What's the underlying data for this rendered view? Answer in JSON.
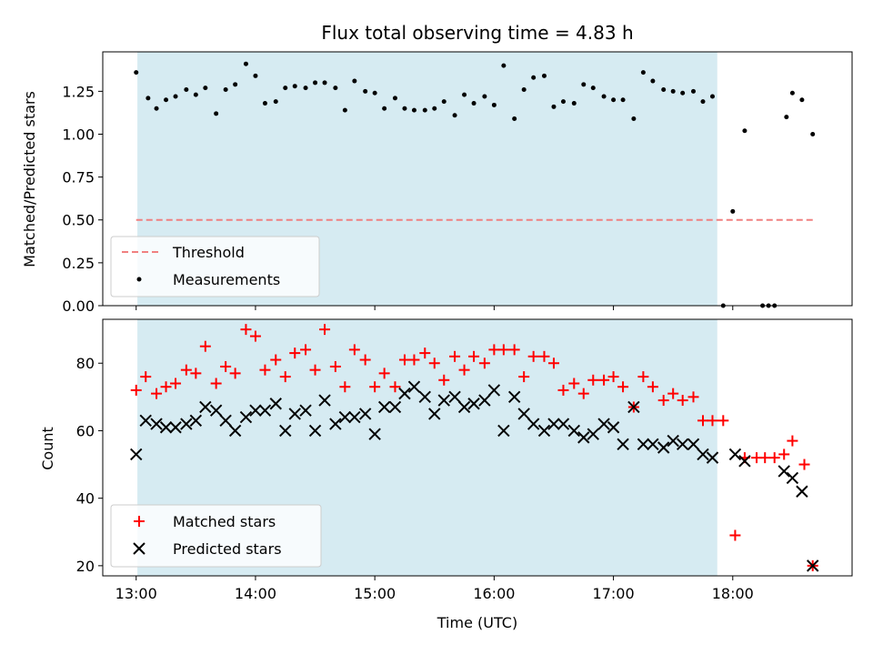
{
  "title": "Flux total observing time = 4.83 h",
  "colors": {
    "shade": "#add8e6",
    "threshold": "#f08080",
    "matched": "#ff0000",
    "predicted": "#000000",
    "measurement": "#000000"
  },
  "chart_data": [
    {
      "type": "scatter",
      "panel": "top",
      "ylabel": "Matched/Predicted stars",
      "ylim": [
        0,
        1.48
      ],
      "yticks": [
        0.0,
        0.25,
        0.5,
        0.75,
        1.0,
        1.25
      ],
      "ytick_labels": [
        "0.00",
        "0.25",
        "0.50",
        "0.75",
        "1.00",
        "1.25"
      ],
      "shaded_x": [
        13.01,
        17.87
      ],
      "threshold": {
        "name": "Threshold",
        "x": [
          13.0,
          18.7
        ],
        "y": 0.5,
        "style": "dashed"
      },
      "series": [
        {
          "name": "Measurements",
          "x": [
            13.0,
            13.1,
            13.17,
            13.25,
            13.33,
            13.42,
            13.5,
            13.58,
            13.67,
            13.75,
            13.83,
            13.92,
            14.0,
            14.08,
            14.17,
            14.25,
            14.33,
            14.42,
            14.5,
            14.58,
            14.67,
            14.75,
            14.83,
            14.92,
            15.0,
            15.08,
            15.17,
            15.25,
            15.33,
            15.42,
            15.5,
            15.58,
            15.67,
            15.75,
            15.83,
            15.92,
            16.0,
            16.08,
            16.17,
            16.25,
            16.33,
            16.42,
            16.5,
            16.58,
            16.67,
            16.75,
            16.83,
            16.92,
            17.0,
            17.08,
            17.17,
            17.25,
            17.33,
            17.42,
            17.5,
            17.58,
            17.67,
            17.75,
            17.83,
            17.92,
            18.0,
            18.1,
            18.25,
            18.3,
            18.35,
            18.45,
            18.5,
            18.58,
            18.67
          ],
          "y": [
            1.36,
            1.21,
            1.15,
            1.2,
            1.22,
            1.26,
            1.23,
            1.27,
            1.12,
            1.26,
            1.29,
            1.41,
            1.34,
            1.18,
            1.19,
            1.27,
            1.28,
            1.27,
            1.3,
            1.3,
            1.27,
            1.14,
            1.31,
            1.25,
            1.24,
            1.15,
            1.21,
            1.15,
            1.14,
            1.14,
            1.15,
            1.19,
            1.11,
            1.23,
            1.18,
            1.22,
            1.17,
            1.4,
            1.09,
            1.26,
            1.33,
            1.34,
            1.16,
            1.19,
            1.18,
            1.29,
            1.27,
            1.22,
            1.2,
            1.2,
            1.09,
            1.36,
            1.31,
            1.26,
            1.25,
            1.24,
            1.25,
            1.19,
            1.22,
            0.0,
            0.55,
            1.02,
            0.0,
            0.0,
            0.0,
            1.1,
            1.24,
            1.2,
            1.0
          ]
        }
      ]
    },
    {
      "type": "scatter",
      "panel": "bottom",
      "xlabel": "Time (UTC)",
      "ylabel": "Count",
      "ylim": [
        17,
        93
      ],
      "yticks": [
        20,
        40,
        60,
        80
      ],
      "ytick_labels": [
        "20",
        "40",
        "60",
        "80"
      ],
      "xlim": [
        12.72,
        19.0
      ],
      "xticks": [
        13,
        14,
        15,
        16,
        17,
        18
      ],
      "xtick_labels": [
        "13:00",
        "14:00",
        "15:00",
        "16:00",
        "17:00",
        "18:00"
      ],
      "shaded_x": [
        13.01,
        17.87
      ],
      "series": [
        {
          "name": "Matched stars",
          "marker": "+",
          "x": [
            13.0,
            13.08,
            13.17,
            13.25,
            13.33,
            13.42,
            13.5,
            13.58,
            13.67,
            13.75,
            13.83,
            13.92,
            14.0,
            14.08,
            14.17,
            14.25,
            14.33,
            14.42,
            14.5,
            14.58,
            14.67,
            14.75,
            14.83,
            14.92,
            15.0,
            15.08,
            15.17,
            15.25,
            15.33,
            15.42,
            15.5,
            15.58,
            15.67,
            15.75,
            15.83,
            15.92,
            16.0,
            16.08,
            16.17,
            16.25,
            16.33,
            16.42,
            16.5,
            16.58,
            16.67,
            16.75,
            16.83,
            16.92,
            17.0,
            17.08,
            17.17,
            17.25,
            17.33,
            17.42,
            17.5,
            17.58,
            17.67,
            17.75,
            17.83,
            17.92,
            18.02,
            18.1,
            18.2,
            18.27,
            18.35,
            18.43,
            18.5,
            18.6,
            18.67
          ],
          "y": [
            72,
            76,
            71,
            73,
            74,
            78,
            77,
            85,
            74,
            79,
            77,
            90,
            88,
            78,
            81,
            76,
            83,
            84,
            78,
            90,
            79,
            73,
            84,
            81,
            73,
            77,
            73,
            81,
            81,
            83,
            80,
            75,
            82,
            78,
            82,
            80,
            84,
            84,
            84,
            76,
            82,
            82,
            80,
            72,
            74,
            71,
            75,
            75,
            76,
            73,
            67,
            76,
            73,
            69,
            71,
            69,
            70,
            63,
            63,
            63,
            29,
            52,
            52,
            52,
            52,
            53,
            57,
            50,
            20
          ]
        },
        {
          "name": "Predicted stars",
          "marker": "x",
          "x": [
            13.0,
            13.08,
            13.17,
            13.25,
            13.33,
            13.42,
            13.5,
            13.58,
            13.67,
            13.75,
            13.83,
            13.92,
            14.0,
            14.08,
            14.17,
            14.25,
            14.33,
            14.42,
            14.5,
            14.58,
            14.67,
            14.75,
            14.83,
            14.92,
            15.0,
            15.08,
            15.17,
            15.25,
            15.33,
            15.42,
            15.5,
            15.58,
            15.67,
            15.75,
            15.83,
            15.92,
            16.0,
            16.08,
            16.17,
            16.25,
            16.33,
            16.42,
            16.5,
            16.58,
            16.67,
            16.75,
            16.83,
            16.92,
            17.0,
            17.08,
            17.17,
            17.25,
            17.33,
            17.42,
            17.5,
            17.58,
            17.67,
            17.75,
            17.83,
            18.02,
            18.1,
            18.43,
            18.5,
            18.58,
            18.67
          ],
          "y": [
            53,
            63,
            62,
            61,
            61,
            62,
            63,
            67,
            66,
            63,
            60,
            64,
            66,
            66,
            68,
            60,
            65,
            66,
            60,
            69,
            62,
            64,
            64,
            65,
            59,
            67,
            67,
            71,
            73,
            70,
            65,
            69,
            70,
            67,
            68,
            69,
            72,
            60,
            70,
            65,
            62,
            60,
            62,
            62,
            60,
            58,
            59,
            62,
            61,
            56,
            67,
            56,
            56,
            55,
            57,
            56,
            56,
            53,
            52,
            53,
            51,
            48,
            46,
            42,
            20
          ]
        }
      ]
    }
  ]
}
